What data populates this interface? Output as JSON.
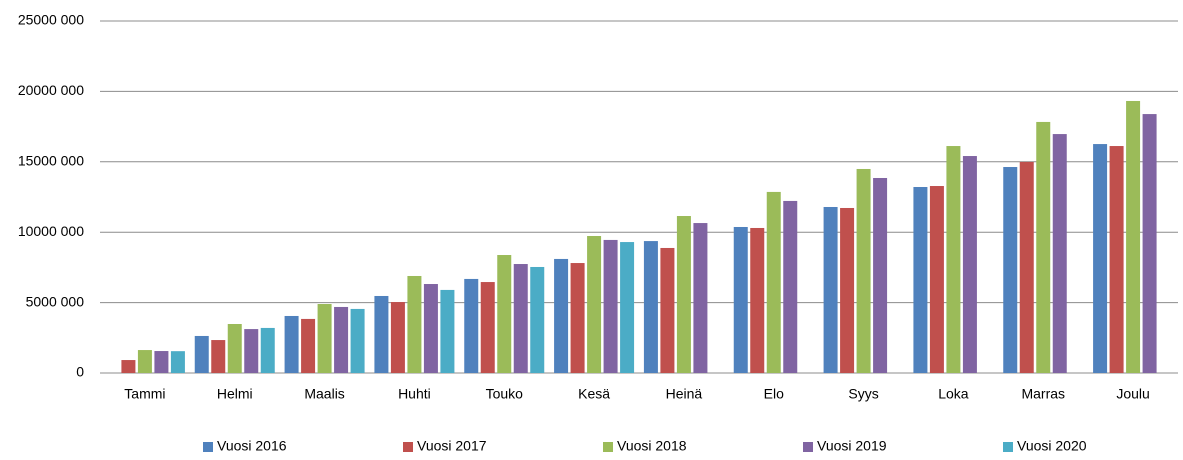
{
  "chart_data": {
    "type": "bar",
    "categories": [
      "Tammi",
      "Helmi",
      "Maalis",
      "Huhti",
      "Touko",
      "Kesä",
      "Heinä",
      "Elo",
      "Syys",
      "Loka",
      "Marras",
      "Joulu"
    ],
    "series": [
      {
        "name": "Vuosi 2016",
        "color": "#4f81bd",
        "values": [
          null,
          2630000,
          4050000,
          5470000,
          6680000,
          8100000,
          9370000,
          10370000,
          11790000,
          13210000,
          14630000,
          16260000
        ]
      },
      {
        "name": "Vuosi 2017",
        "color": "#c0504d",
        "values": [
          920000,
          2340000,
          3840000,
          5040000,
          6460000,
          7810000,
          8880000,
          10300000,
          11720000,
          13280000,
          14990000,
          16120000
        ]
      },
      {
        "name": "Vuosi 2018",
        "color": "#9bbb59",
        "values": [
          1630000,
          3480000,
          4900000,
          6890000,
          8380000,
          9730000,
          11150000,
          12860000,
          14490000,
          16120000,
          17830000,
          19320000
        ]
      },
      {
        "name": "Vuosi 2019",
        "color": "#8064a2",
        "values": [
          1560000,
          3120000,
          4690000,
          6320000,
          7740000,
          9450000,
          10650000,
          12220000,
          13850000,
          15410000,
          16970000,
          18390000
        ]
      },
      {
        "name": "Vuosi 2020",
        "color": "#4bacc6",
        "values": [
          1550000,
          3200000,
          4550000,
          5900000,
          7530000,
          9300000,
          null,
          null,
          null,
          null,
          null,
          null
        ]
      }
    ],
    "ylim": [
      0,
      25000000
    ],
    "yticks": [
      0,
      {
        "value": 5000000,
        "label": "5000 000"
      },
      {
        "value": 10000000,
        "label": "10000 000"
      },
      {
        "value": 15000000,
        "label": "15000 000"
      },
      {
        "value": 20000000,
        "label": "20000 000"
      },
      {
        "value": 25000000,
        "label": "25000 000"
      }
    ],
    "grid": true,
    "legend": "bottom"
  }
}
